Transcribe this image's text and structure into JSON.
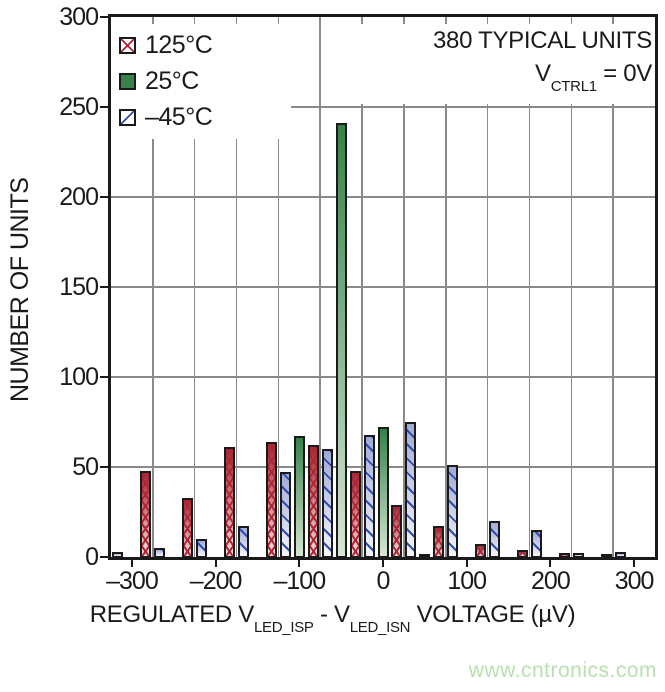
{
  "colors": {
    "frame": "#1a1a1a",
    "grid": "#8a8a8a",
    "red_accent": "#b02433",
    "green_accent": "#3a8049",
    "blue_accent": "#2f4cb3",
    "watermark": "#b9e0b0"
  },
  "legend": {
    "items": [
      {
        "label": "125°C",
        "swatch": "red-crosshatch-swatch-icon"
      },
      {
        "label": "25°C",
        "swatch": "green-solid-swatch-icon"
      },
      {
        "label": "–45°C",
        "swatch": "blue-diagonal-swatch-icon"
      }
    ]
  },
  "annotation": {
    "line1": "380 TYPICAL UNITS",
    "line2_pre": "V",
    "line2_sub": "CTRL1",
    "line2_post": " = 0V"
  },
  "axes": {
    "y_label": "NUMBER OF UNITS",
    "x_label_p1": "REGULATED V",
    "x_label_s1": "LED_ISP",
    "x_label_p2": " - V",
    "x_label_s2": "LED_ISN",
    "x_label_p3": " VOLTAGE (µV)"
  },
  "watermark": "www.cntronics.com",
  "chart_data": {
    "type": "bar",
    "subtype": "histogram",
    "title": "",
    "xlabel": "REGULATED V_LED_ISP - V_LED_ISN VOLTAGE (µV)",
    "ylabel": "NUMBER OF UNITS",
    "xlim": [
      -325,
      325
    ],
    "ylim": [
      0,
      300
    ],
    "bin_width_uV": 50,
    "categories": [
      -300,
      -250,
      -200,
      -150,
      -100,
      -50,
      0,
      50,
      100,
      150,
      200,
      250,
      300
    ],
    "series": [
      {
        "name": "125°C",
        "style": "red-crosshatch",
        "slot": 2,
        "values": [
          48,
          33,
          61,
          64,
          62,
          48,
          29,
          17,
          7,
          4,
          2,
          1,
          0
        ]
      },
      {
        "name": "25°C",
        "style": "green-solid",
        "slot": 1,
        "values": [
          0,
          0,
          0,
          0,
          67,
          241,
          72,
          1,
          0,
          0,
          0,
          0,
          0
        ]
      },
      {
        "name": "–45°C",
        "style": "blue-diagonal",
        "slot": 0,
        "values": [
          3,
          5,
          10,
          17,
          47,
          60,
          68,
          75,
          51,
          20,
          15,
          2,
          3
        ]
      }
    ],
    "x_tick_values": [
      -300,
      -200,
      -100,
      0,
      100,
      200,
      300
    ],
    "x_tick_labels": [
      "–300",
      "–200",
      "–100",
      "0",
      "100",
      "200",
      "300"
    ],
    "y_tick_values": [
      0,
      50,
      100,
      150,
      200,
      250,
      300
    ],
    "y_tick_labels": [
      "0",
      "50",
      "100",
      "150",
      "200",
      "250",
      "300"
    ],
    "grid": "vertical lines every 50 µV at bin edges, horizontal lines every 50 units",
    "legend_position": "top-left inside plot",
    "annotations": [
      "380 TYPICAL UNITS",
      "V_CTRL1 = 0V"
    ]
  }
}
